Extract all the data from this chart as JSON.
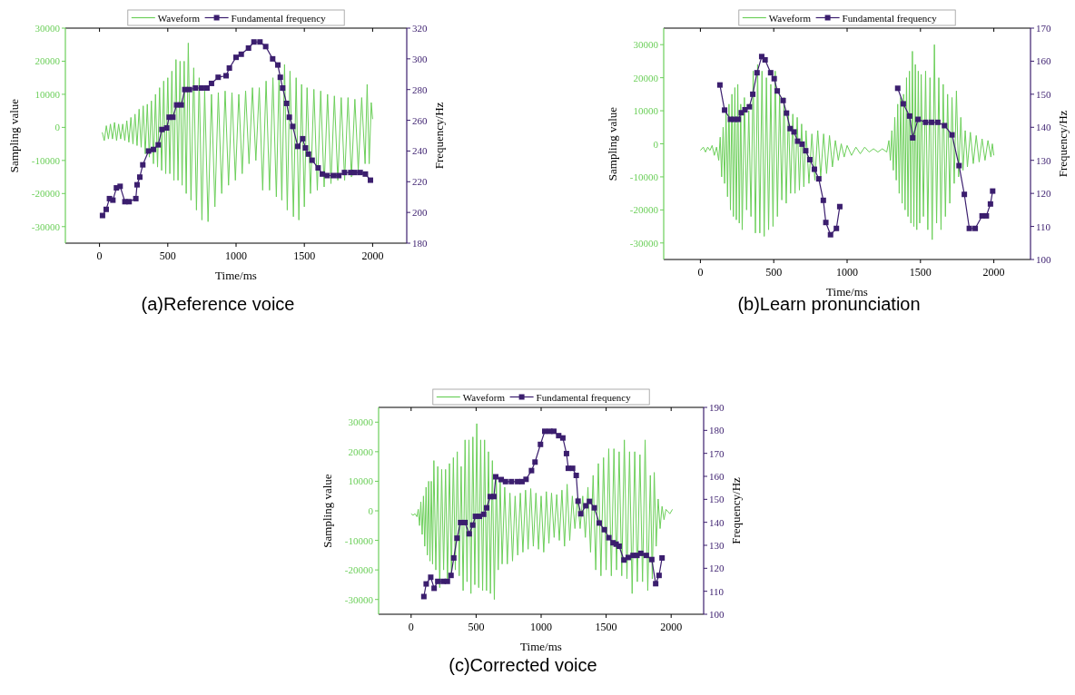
{
  "chart_data": [
    {
      "type": "line",
      "xlabel": "Time/ms",
      "ylabel": "Sampling value",
      "y2label": "Frequency/Hz",
      "annotations": [
        "(a)Reference voice"
      ],
      "legend": "top",
      "grid": false,
      "xlim": [
        -250,
        2250
      ],
      "xticks": [
        0,
        500,
        1000,
        1500,
        2000
      ],
      "ylim": [
        -35000,
        30000
      ],
      "yticks": [
        -30000,
        -20000,
        -10000,
        0,
        10000,
        20000,
        30000
      ],
      "y2lim": [
        180,
        320
      ],
      "y2ticks": [
        180,
        200,
        220,
        240,
        260,
        280,
        300,
        320
      ],
      "series": [
        {
          "name": "Waveform",
          "color": "#6ccf5a",
          "axis": "y",
          "marker": "none",
          "x": [
            20,
            35,
            50,
            65,
            80,
            95,
            110,
            125,
            140,
            155,
            170,
            185,
            200,
            215,
            230,
            245,
            260,
            275,
            290,
            305,
            320,
            335,
            350,
            365,
            380,
            395,
            410,
            425,
            440,
            455,
            470,
            485,
            500,
            515,
            530,
            545,
            560,
            575,
            590,
            605,
            620,
            635,
            650,
            670,
            690,
            710,
            730,
            750,
            770,
            795,
            820,
            845,
            870,
            895,
            920,
            945,
            970,
            995,
            1020,
            1045,
            1070,
            1095,
            1120,
            1145,
            1170,
            1195,
            1220,
            1245,
            1270,
            1295,
            1315,
            1335,
            1355,
            1375,
            1395,
            1420,
            1440,
            1460,
            1480,
            1500,
            1520,
            1545,
            1570,
            1595,
            1620,
            1645,
            1670,
            1695,
            1720,
            1745,
            1770,
            1795,
            1820,
            1845,
            1870,
            1895,
            1920,
            1945,
            1960,
            1975,
            1990,
            2000
          ],
          "values": [
            -1500,
            -4000,
            500,
            -3500,
            1000,
            -3500,
            1500,
            -4000,
            1000,
            -3500,
            1000,
            -4000,
            2000,
            -4500,
            3000,
            -5000,
            4000,
            -5500,
            5500,
            -6000,
            6500,
            -8000,
            7000,
            -9000,
            8000,
            -11000,
            10000,
            -12000,
            12000,
            -13000,
            14000,
            -14000,
            15000,
            -14000,
            17000,
            -16000,
            20500,
            -16000,
            20000,
            -17500,
            20000,
            -20000,
            25500,
            -22000,
            18000,
            -25000,
            15000,
            -28000,
            11000,
            -28500,
            10000,
            -24000,
            10500,
            -20000,
            11000,
            -17500,
            10500,
            -16000,
            10000,
            -14000,
            11000,
            -11000,
            12000,
            -10000,
            12000,
            -19000,
            14000,
            -19000,
            15000,
            -21000,
            16000,
            -22000,
            19000,
            -25000,
            17000,
            -27000,
            15000,
            -28000,
            13000,
            -24000,
            12000,
            -20000,
            11500,
            -19000,
            11000,
            -18000,
            10000,
            -17000,
            9500,
            -16000,
            9000,
            -16000,
            9000,
            -15000,
            8500,
            -13000,
            9000,
            -11000,
            13000,
            -11000,
            7500,
            2500
          ]
        },
        {
          "name": "Fundamental frequency",
          "color": "#3b1e6e",
          "axis": "y2",
          "marker": "square",
          "x": [
            22,
            49,
            73,
            98,
            124,
            151,
            186,
            217,
            266,
            275,
            295,
            317,
            359,
            395,
            430,
            457,
            492,
            510,
            537,
            565,
            599,
            625,
            659,
            703,
            747,
            787,
            820,
            869,
            927,
            951,
            1000,
            1038,
            1091,
            1131,
            1175,
            1217,
            1268,
            1306,
            1324,
            1341,
            1370,
            1390,
            1415,
            1452,
            1488,
            1508,
            1530,
            1557,
            1601,
            1632,
            1667,
            1712,
            1752,
            1794,
            1840,
            1869,
            1909,
            1947,
            1984
          ],
          "values": [
            198,
            202,
            209,
            208,
            216,
            217,
            207,
            207,
            209,
            218,
            223,
            231,
            240,
            241,
            244,
            254,
            255,
            262,
            262,
            270,
            270,
            280,
            280,
            281,
            281,
            281,
            284,
            288,
            289,
            294,
            301,
            303,
            307,
            311,
            311,
            308,
            300,
            296,
            288,
            281,
            271,
            262,
            256,
            243,
            248,
            242,
            238,
            234,
            229,
            225,
            224,
            224,
            224,
            226,
            226,
            226,
            226,
            225,
            221
          ]
        }
      ]
    },
    {
      "type": "line",
      "xlabel": "Time/ms",
      "ylabel": "Sampling value",
      "y2label": "Frequency/Hz",
      "annotations": [
        "(b)Learn pronunciation"
      ],
      "legend": "top",
      "grid": false,
      "xlim": [
        -250,
        2250
      ],
      "xticks": [
        0,
        500,
        1000,
        1500,
        2000
      ],
      "ylim": [
        -35000,
        35000
      ],
      "yticks": [
        -30000,
        -20000,
        -10000,
        0,
        10000,
        20000,
        30000
      ],
      "y2lim": [
        100,
        170
      ],
      "y2ticks": [
        100,
        110,
        120,
        130,
        140,
        150,
        160,
        170
      ],
      "series": [
        {
          "name": "Waveform",
          "color": "#6ccf5a",
          "axis": "y",
          "marker": "none",
          "x": [
            0,
            20,
            35,
            50,
            65,
            80,
            95,
            110,
            125,
            135,
            145,
            155,
            165,
            175,
            185,
            195,
            205,
            215,
            225,
            235,
            245,
            255,
            265,
            275,
            285,
            300,
            315,
            330,
            345,
            360,
            375,
            390,
            405,
            420,
            435,
            450,
            465,
            480,
            495,
            510,
            525,
            540,
            555,
            570,
            585,
            600,
            615,
            630,
            645,
            660,
            675,
            690,
            705,
            720,
            740,
            760,
            780,
            800,
            820,
            840,
            860,
            880,
            900,
            920,
            940,
            960,
            980,
            1000,
            1030,
            1060,
            1090,
            1120,
            1150,
            1180,
            1210,
            1240,
            1270,
            1285,
            1295,
            1305,
            1315,
            1325,
            1335,
            1345,
            1355,
            1365,
            1375,
            1385,
            1395,
            1405,
            1415,
            1425,
            1435,
            1445,
            1455,
            1465,
            1475,
            1485,
            1495,
            1505,
            1520,
            1535,
            1550,
            1565,
            1580,
            1595,
            1610,
            1625,
            1640,
            1655,
            1670,
            1685,
            1700,
            1715,
            1730,
            1745,
            1760,
            1775,
            1790,
            1805,
            1820,
            1840,
            1860,
            1880,
            1900,
            1920,
            1940,
            1960,
            1980,
            1990,
            2000
          ],
          "values": [
            -2000,
            -1000,
            -2500,
            -1000,
            -2000,
            -500,
            -3500,
            -1000,
            -5000,
            2000,
            -10000,
            5000,
            -12000,
            10000,
            -16000,
            12000,
            -20000,
            15000,
            -22000,
            17000,
            -23000,
            18000,
            -24000,
            12000,
            -26000,
            14000,
            -20000,
            10000,
            -22000,
            22000,
            -27000,
            24000,
            -27000,
            22000,
            -28000,
            20000,
            -26000,
            18000,
            -25000,
            22000,
            -22000,
            15000,
            -17000,
            14000,
            -18000,
            10000,
            -15000,
            9000,
            -15000,
            8000,
            -14000,
            6000,
            -13000,
            4000,
            -12000,
            3000,
            -11000,
            4000,
            -10000,
            3000,
            -9000,
            2500,
            -7000,
            1000,
            -5000,
            0,
            -4000,
            -500,
            -3500,
            -1000,
            -3000,
            -1000,
            -2500,
            -1500,
            -2500,
            -1500,
            -2500,
            1000,
            -5000,
            4000,
            -8000,
            8000,
            -11000,
            12000,
            -15000,
            14000,
            -18000,
            15000,
            -20000,
            20000,
            -22000,
            22000,
            -24000,
            28000,
            -25000,
            24000,
            -26000,
            22000,
            -24000,
            21000,
            -22000,
            22000,
            -26000,
            20000,
            -29000,
            30000,
            -24000,
            20000,
            -26000,
            18000,
            -22000,
            15000,
            -18000,
            14000,
            -12000,
            16000,
            -10000,
            8000,
            -8000,
            4000,
            -7000,
            3500,
            -6000,
            2500,
            -5500,
            1500,
            -5000,
            1000,
            -4000,
            0,
            -3500
          ]
        },
        {
          "name": "Fundamental frequency",
          "color": "#3b1e6e",
          "axis": "y2",
          "marker": "square",
          "x": [
            133,
            165,
            205,
            230,
            258,
            279,
            304,
            334,
            357,
            386,
            418,
            441,
            479,
            503,
            524,
            564,
            587,
            612,
            638,
            663,
            693,
            718,
            746,
            777,
            807,
            838,
            855,
            887,
            927,
            950,
            1150,
            1345,
            1383,
            1426,
            1447,
            1483,
            1535,
            1576,
            1618,
            1664,
            1715,
            1763,
            1799,
            1833,
            1873,
            1920,
            1949,
            1977,
            1992
          ],
          "values": [
            152.8,
            145.2,
            142.4,
            142.4,
            142.4,
            144.4,
            145.3,
            146.2,
            150,
            156.5,
            161.4,
            160.4,
            156.5,
            154.7,
            151,
            148.1,
            144.3,
            139.6,
            138.6,
            135.8,
            134.9,
            132.9,
            130.2,
            127.3,
            124.4,
            117.9,
            111.2,
            107.5,
            109.4,
            116,
            null,
            151.8,
            147.1,
            143.4,
            136.8,
            142.4,
            141.5,
            141.5,
            141.5,
            140.5,
            137.7,
            128.4,
            119.7,
            109.4,
            109.4,
            113.2,
            113.2,
            116.8,
            120.7
          ]
        }
      ]
    },
    {
      "type": "line",
      "xlabel": "Time/ms",
      "ylabel": "Sampling value",
      "y2label": "Frequency/Hz",
      "annotations": [
        "(c)Corrected voice"
      ],
      "legend": "top",
      "grid": false,
      "xlim": [
        -250,
        2250
      ],
      "xticks": [
        0,
        500,
        1000,
        1500,
        2000
      ],
      "ylim": [
        -35000,
        35000
      ],
      "yticks": [
        -30000,
        -20000,
        -10000,
        0,
        10000,
        20000,
        30000
      ],
      "y2lim": [
        100,
        190
      ],
      "y2ticks": [
        100,
        110,
        120,
        130,
        140,
        150,
        160,
        170,
        180,
        190
      ],
      "series": [
        {
          "name": "Waveform",
          "color": "#6ccf5a",
          "axis": "y",
          "marker": "none",
          "x": [
            0,
            15,
            30,
            45,
            55,
            65,
            75,
            85,
            95,
            105,
            115,
            125,
            135,
            145,
            155,
            165,
            175,
            190,
            205,
            220,
            235,
            250,
            265,
            280,
            295,
            310,
            325,
            340,
            355,
            370,
            385,
            400,
            415,
            430,
            445,
            460,
            475,
            490,
            505,
            520,
            535,
            550,
            565,
            580,
            595,
            610,
            625,
            640,
            655,
            670,
            685,
            700,
            720,
            740,
            760,
            780,
            800,
            820,
            840,
            860,
            880,
            900,
            920,
            940,
            960,
            980,
            1000,
            1020,
            1040,
            1060,
            1080,
            1100,
            1120,
            1140,
            1160,
            1180,
            1200,
            1220,
            1240,
            1260,
            1280,
            1300,
            1320,
            1340,
            1360,
            1380,
            1400,
            1420,
            1440,
            1460,
            1480,
            1500,
            1520,
            1540,
            1560,
            1580,
            1600,
            1620,
            1640,
            1660,
            1680,
            1700,
            1720,
            1740,
            1760,
            1780,
            1800,
            1820,
            1840,
            1855,
            1870,
            1885,
            1900,
            1915,
            1930,
            1945,
            1960,
            1990,
            2010
          ],
          "values": [
            -1000,
            -1500,
            -1000,
            -2000,
            500,
            -5000,
            3000,
            -8000,
            5000,
            -12000,
            8000,
            -15000,
            10000,
            -17000,
            10000,
            -18000,
            17000,
            -20000,
            15000,
            -26000,
            14000,
            -20000,
            14000,
            -24000,
            16000,
            -22000,
            18000,
            -20000,
            20000,
            -22000,
            15000,
            -27000,
            24000,
            -24000,
            24000,
            -28000,
            25000,
            -25000,
            29500,
            -26000,
            24000,
            -27000,
            24000,
            -27000,
            20000,
            -28000,
            17000,
            -30000,
            12000,
            -20000,
            10000,
            -18000,
            8000,
            -18000,
            6000,
            -17000,
            5000,
            -15000,
            6000,
            -14000,
            7000,
            -13000,
            7500,
            -12000,
            6000,
            -13000,
            5000,
            -14000,
            6500,
            -11000,
            6000,
            -9000,
            5500,
            -10000,
            7000,
            -12000,
            9000,
            -10000,
            5000,
            -6000,
            4500,
            -6000,
            5000,
            -9000,
            8000,
            -14000,
            12000,
            -20000,
            16000,
            -22000,
            18000,
            -20000,
            21000,
            -22000,
            21000,
            -20000,
            20000,
            -22000,
            24000,
            -23000,
            20000,
            -28000,
            20000,
            -24000,
            19000,
            -24000,
            24000,
            -27000,
            12000,
            -23000,
            13000,
            -12000,
            4000,
            -6000,
            1500,
            -3000,
            500,
            -1000,
            500
          ]
        },
        {
          "name": "Fundamental frequency",
          "color": "#3b1e6e",
          "axis": "y2",
          "marker": "square",
          "x": [
            98,
            116,
            151,
            177,
            205,
            247,
            279,
            307,
            328,
            353,
            381,
            414,
            447,
            474,
            495,
            526,
            558,
            581,
            609,
            637,
            651,
            693,
            726,
            772,
            819,
            853,
            884,
            926,
            953,
            995,
            1028,
            1067,
            1098,
            1135,
            1167,
            1195,
            1209,
            1242,
            1270,
            1284,
            1305,
            1344,
            1372,
            1409,
            1447,
            1486,
            1521,
            1553,
            1577,
            1600,
            1637,
            1670,
            1707,
            1737,
            1767,
            1809,
            1851,
            1881,
            1907,
            1930
          ],
          "values": [
            107.7,
            113.2,
            116.1,
            111.3,
            114.3,
            114.3,
            114.3,
            116.9,
            124.5,
            133.1,
            139.9,
            139.9,
            135,
            138.8,
            142.6,
            142.6,
            143.5,
            146.3,
            151.2,
            151.2,
            159.8,
            158.6,
            157.7,
            157.7,
            157.7,
            157.7,
            158.7,
            162.5,
            166.2,
            173.9,
            179.6,
            179.6,
            179.6,
            177.7,
            176.7,
            169.9,
            163.5,
            163.5,
            160.4,
            149.2,
            143.7,
            147.2,
            149.1,
            146.3,
            139.7,
            136.8,
            133.3,
            131.1,
            130.5,
            129.6,
            123.6,
            124.7,
            125.6,
            125.6,
            126.5,
            125.6,
            123.8,
            113.3,
            116.9,
            124.5
          ]
        }
      ]
    }
  ]
}
